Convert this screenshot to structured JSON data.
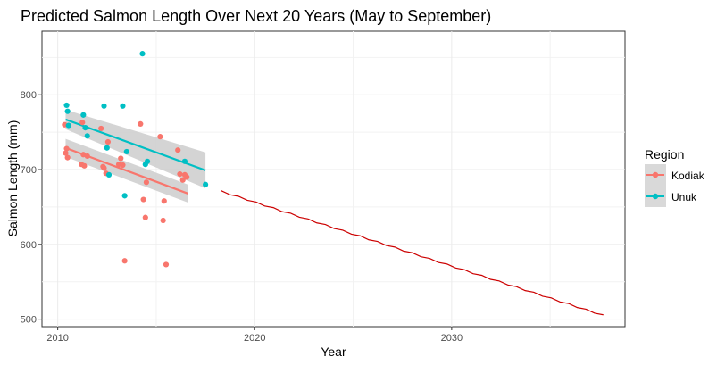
{
  "chart_data": {
    "type": "scatter",
    "title": "Predicted Salmon Length Over Next 20 Years (May to September)",
    "xlabel": "Year",
    "ylabel": "Salmon Length (mm)",
    "xlim": [
      2009.2,
      2038.8
    ],
    "ylim": [
      490,
      885
    ],
    "x_ticks": [
      2010,
      2020,
      2030
    ],
    "y_ticks": [
      500,
      600,
      700,
      800
    ],
    "grid": true,
    "legend": {
      "title": "Region",
      "position": "right",
      "entries": [
        {
          "name": "Kodiak",
          "color": "#F8766D"
        },
        {
          "name": "Unuk",
          "color": "#00BFC4"
        }
      ]
    },
    "series": [
      {
        "name": "Kodiak",
        "kind": "points",
        "color": "#F8766D",
        "points": [
          {
            "x": 2010.35,
            "y": 760
          },
          {
            "x": 2010.4,
            "y": 722
          },
          {
            "x": 2010.45,
            "y": 728
          },
          {
            "x": 2010.5,
            "y": 716
          },
          {
            "x": 2011.2,
            "y": 707
          },
          {
            "x": 2011.25,
            "y": 763
          },
          {
            "x": 2011.3,
            "y": 720
          },
          {
            "x": 2011.35,
            "y": 705
          },
          {
            "x": 2011.5,
            "y": 718
          },
          {
            "x": 2012.2,
            "y": 755
          },
          {
            "x": 2012.3,
            "y": 704
          },
          {
            "x": 2012.35,
            "y": 702
          },
          {
            "x": 2012.45,
            "y": 695
          },
          {
            "x": 2012.55,
            "y": 737
          },
          {
            "x": 2013.1,
            "y": 707
          },
          {
            "x": 2013.2,
            "y": 715
          },
          {
            "x": 2013.3,
            "y": 706
          },
          {
            "x": 2013.4,
            "y": 578
          },
          {
            "x": 2014.2,
            "y": 761
          },
          {
            "x": 2014.35,
            "y": 660
          },
          {
            "x": 2014.45,
            "y": 636
          },
          {
            "x": 2014.5,
            "y": 683
          },
          {
            "x": 2015.2,
            "y": 744
          },
          {
            "x": 2015.35,
            "y": 632
          },
          {
            "x": 2015.4,
            "y": 658
          },
          {
            "x": 2015.5,
            "y": 573
          },
          {
            "x": 2016.1,
            "y": 726
          },
          {
            "x": 2016.2,
            "y": 694
          },
          {
            "x": 2016.35,
            "y": 686
          },
          {
            "x": 2016.45,
            "y": 693
          },
          {
            "x": 2016.55,
            "y": 690
          }
        ]
      },
      {
        "name": "Unuk",
        "kind": "points",
        "color": "#00BFC4",
        "points": [
          {
            "x": 2010.45,
            "y": 786
          },
          {
            "x": 2010.5,
            "y": 778
          },
          {
            "x": 2010.55,
            "y": 759
          },
          {
            "x": 2011.3,
            "y": 773
          },
          {
            "x": 2011.4,
            "y": 756
          },
          {
            "x": 2011.5,
            "y": 745
          },
          {
            "x": 2012.35,
            "y": 785
          },
          {
            "x": 2012.5,
            "y": 729
          },
          {
            "x": 2012.6,
            "y": 693
          },
          {
            "x": 2013.3,
            "y": 785
          },
          {
            "x": 2013.4,
            "y": 665
          },
          {
            "x": 2013.5,
            "y": 724
          },
          {
            "x": 2014.3,
            "y": 855
          },
          {
            "x": 2014.45,
            "y": 707
          },
          {
            "x": 2014.55,
            "y": 711
          },
          {
            "x": 2016.45,
            "y": 711
          },
          {
            "x": 2017.5,
            "y": 680
          }
        ]
      },
      {
        "name": "Kodiak",
        "kind": "trend",
        "color": "#F8766D",
        "x": [
          2010.4,
          2016.6
        ],
        "y": [
          729,
          668
        ],
        "band_upper": [
          741,
          680
        ],
        "band_lower": [
          717,
          656
        ],
        "band_color": "#cccccc"
      },
      {
        "name": "Unuk",
        "kind": "trend",
        "color": "#00BFC4",
        "x": [
          2010.4,
          2017.5
        ],
        "y": [
          767,
          699
        ],
        "band_upper": [
          780,
          723
        ],
        "band_lower": [
          754,
          675
        ],
        "band_color": "#cccccc"
      },
      {
        "name": "",
        "kind": "prediction",
        "color": "#CC0000",
        "x_start": 2018.3,
        "x_end": 2037.7,
        "y_start": 671,
        "y_end": 505
      }
    ]
  }
}
